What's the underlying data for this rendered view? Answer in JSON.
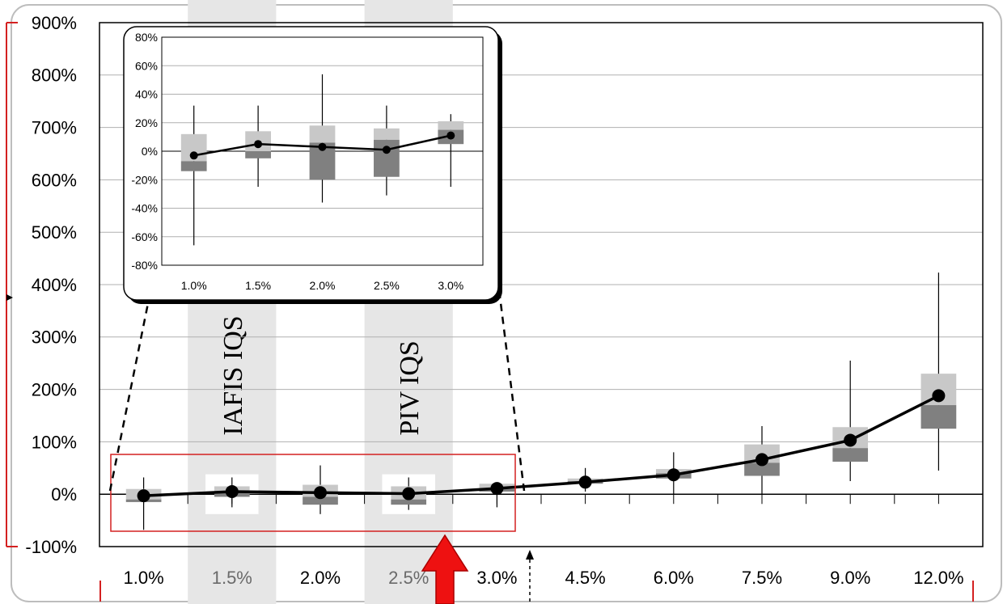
{
  "chart_data": [
    {
      "type": "box",
      "x_labels": [
        "1.0%",
        "1.5%",
        "2.0%",
        "2.5%",
        "3.0%",
        "4.5%",
        "6.0%",
        "7.5%",
        "9.0%",
        "12.0%"
      ],
      "y_ticks": [
        "900%",
        "800%",
        "700%",
        "600%",
        "500%",
        "400%",
        "300%",
        "200%",
        "100%",
        "0%",
        "-100%"
      ],
      "ylim": [
        -100,
        900
      ],
      "grid": "horizontal",
      "series": [
        {
          "min": [
            -68,
            -25,
            -38,
            -30,
            -25,
            5,
            0,
            0,
            25,
            45
          ],
          "q1": [
            -15,
            -5,
            -20,
            -20,
            5,
            20,
            30,
            35,
            62,
            125
          ],
          "median": [
            -10,
            5,
            -5,
            -10,
            10,
            25,
            40,
            60,
            88,
            170
          ],
          "q3": [
            10,
            15,
            18,
            15,
            20,
            30,
            48,
            95,
            128,
            230
          ],
          "max": [
            32,
            32,
            55,
            32,
            22,
            50,
            80,
            130,
            255,
            423
          ],
          "mean": [
            -3,
            5,
            3,
            1,
            11,
            23,
            37,
            66,
            103,
            188
          ]
        }
      ],
      "bands": [
        "IAFIS IQS",
        "PIV IQS"
      ],
      "band_positions": [
        "1.5%",
        "2.5%"
      ],
      "colors": {
        "upper_box": "#c8c8c8",
        "lower_box": "#808080",
        "band": "#e6e6e6",
        "highlight": "#d42020",
        "arrow": "#ee1111"
      }
    },
    {
      "type": "box",
      "x_labels": [
        "1.0%",
        "1.5%",
        "2.0%",
        "2.5%",
        "3.0%"
      ],
      "y_ticks": [
        "80%",
        "60%",
        "40%",
        "20%",
        "0%",
        "-20%",
        "-40%",
        "-60%",
        "-80%"
      ],
      "ylim": [
        -80,
        80
      ],
      "grid": "horizontal",
      "series": [
        {
          "min": [
            -66,
            -25,
            -36,
            -31,
            -25
          ],
          "q1": [
            -14,
            -5,
            -20,
            -18,
            5
          ],
          "median": [
            -7,
            0,
            6,
            8,
            15
          ],
          "q3": [
            12,
            14,
            18,
            16,
            21
          ],
          "max": [
            32,
            32,
            54,
            32,
            26
          ],
          "mean": [
            -3,
            5,
            3,
            1,
            11
          ]
        }
      ]
    }
  ]
}
